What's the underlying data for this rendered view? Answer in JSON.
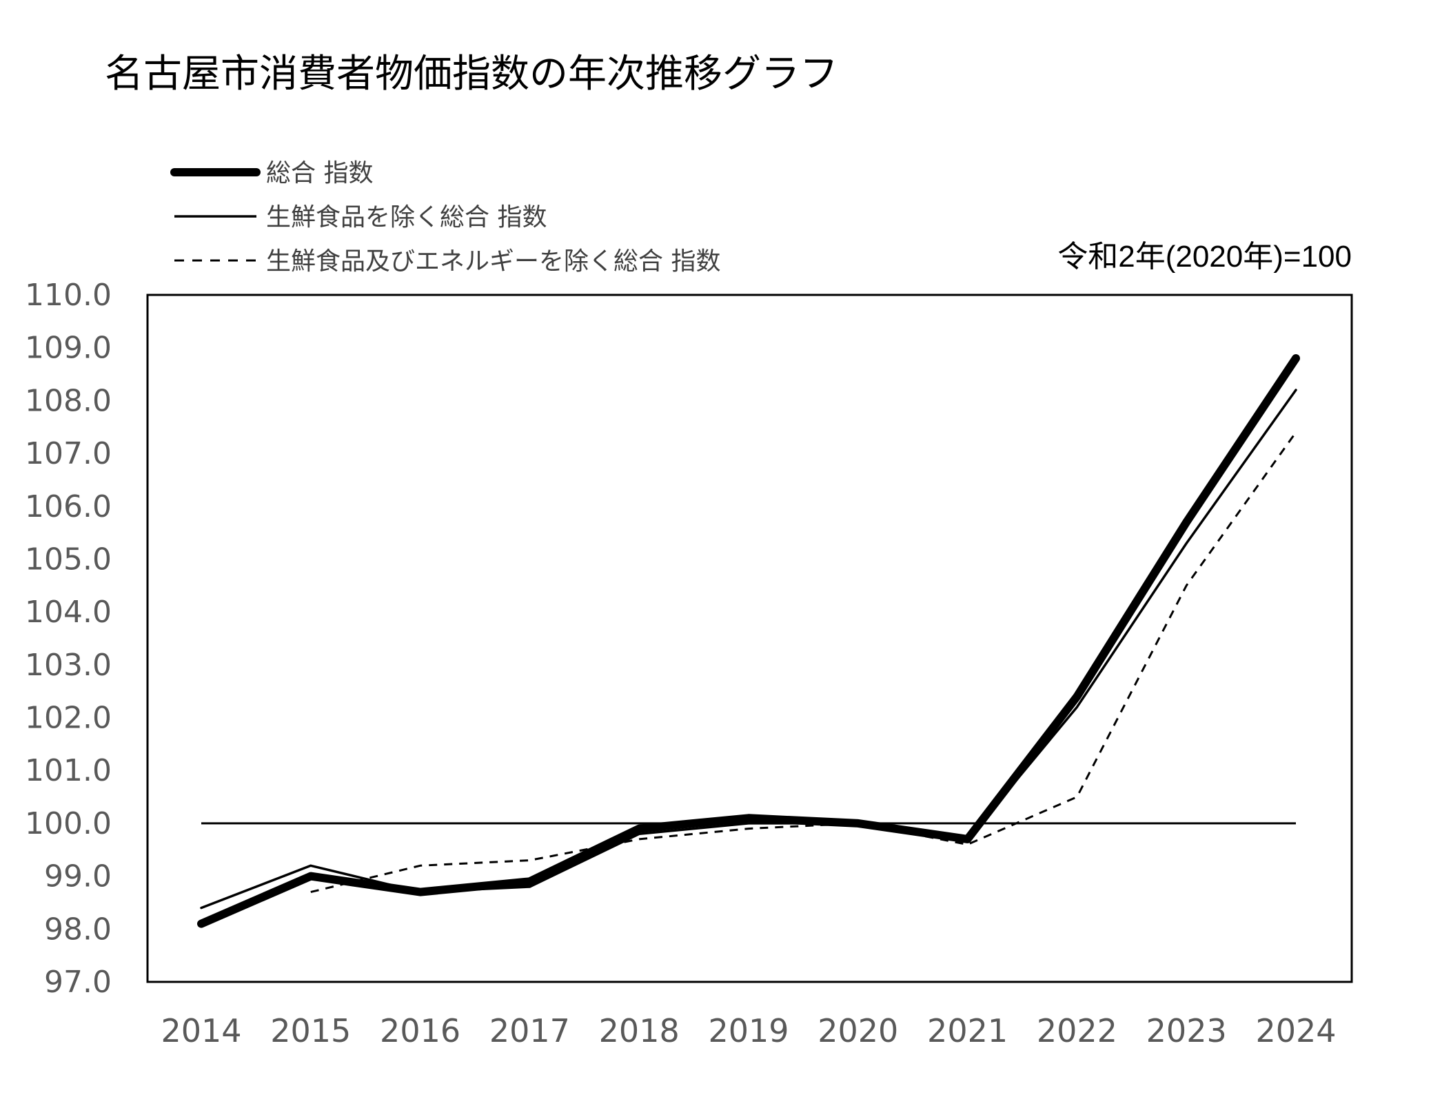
{
  "chart_data": {
    "type": "line",
    "title": "名古屋市消費者物価指数の年次推移グラフ",
    "note": "令和2年(2020年)=100",
    "categories": [
      "2014",
      "2015",
      "2016",
      "2017",
      "2018",
      "2019",
      "2020",
      "2021",
      "2022",
      "2023",
      "2024"
    ],
    "ylim": [
      97.0,
      110.0
    ],
    "yticks": [
      "110.0",
      "109.0",
      "108.0",
      "107.0",
      "106.0",
      "105.0",
      "104.0",
      "103.0",
      "102.0",
      "101.0",
      "100.0",
      "99.0",
      "98.0",
      "97.0"
    ],
    "reference_line": 100.0,
    "legend_position": "top-left",
    "series": [
      {
        "name": "総合 指数",
        "style": "thick",
        "color": "#000000",
        "values": [
          98.1,
          99.0,
          98.7,
          98.9,
          99.9,
          100.1,
          100.0,
          99.7,
          102.4,
          105.7,
          108.8
        ]
      },
      {
        "name": "生鮮食品を除く総合 指数",
        "style": "thin",
        "color": "#000000",
        "values": [
          98.4,
          99.2,
          98.7,
          98.8,
          99.8,
          100.0,
          100.0,
          99.7,
          102.2,
          105.3,
          108.2
        ]
      },
      {
        "name": "生鮮食品及びエネルギーを除く総合 指数",
        "style": "dashed",
        "color": "#000000",
        "values": [
          null,
          98.7,
          99.2,
          99.3,
          99.7,
          99.9,
          100.0,
          99.6,
          100.5,
          104.5,
          107.4
        ]
      }
    ]
  }
}
